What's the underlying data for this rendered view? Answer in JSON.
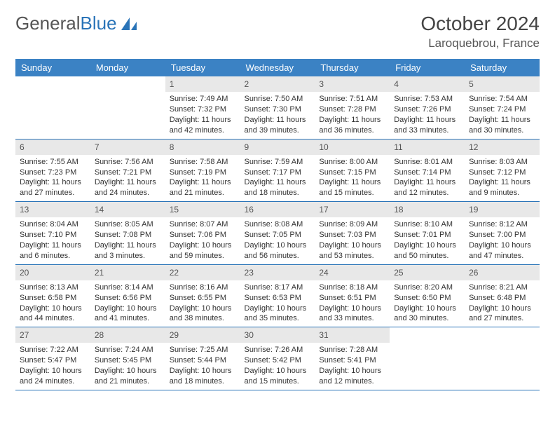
{
  "logo": {
    "text1": "General",
    "text2": "Blue"
  },
  "title": "October 2024",
  "location": "Laroquebrou, France",
  "colors": {
    "header_bg": "#3b82c4",
    "border": "#2a74b8",
    "daynum_bg": "#e8e8e8"
  },
  "weekdays": [
    "Sunday",
    "Monday",
    "Tuesday",
    "Wednesday",
    "Thursday",
    "Friday",
    "Saturday"
  ],
  "grid": [
    [
      null,
      null,
      {
        "n": "1",
        "sr": "Sunrise: 7:49 AM",
        "ss": "Sunset: 7:32 PM",
        "dl": "Daylight: 11 hours and 42 minutes."
      },
      {
        "n": "2",
        "sr": "Sunrise: 7:50 AM",
        "ss": "Sunset: 7:30 PM",
        "dl": "Daylight: 11 hours and 39 minutes."
      },
      {
        "n": "3",
        "sr": "Sunrise: 7:51 AM",
        "ss": "Sunset: 7:28 PM",
        "dl": "Daylight: 11 hours and 36 minutes."
      },
      {
        "n": "4",
        "sr": "Sunrise: 7:53 AM",
        "ss": "Sunset: 7:26 PM",
        "dl": "Daylight: 11 hours and 33 minutes."
      },
      {
        "n": "5",
        "sr": "Sunrise: 7:54 AM",
        "ss": "Sunset: 7:24 PM",
        "dl": "Daylight: 11 hours and 30 minutes."
      }
    ],
    [
      {
        "n": "6",
        "sr": "Sunrise: 7:55 AM",
        "ss": "Sunset: 7:23 PM",
        "dl": "Daylight: 11 hours and 27 minutes."
      },
      {
        "n": "7",
        "sr": "Sunrise: 7:56 AM",
        "ss": "Sunset: 7:21 PM",
        "dl": "Daylight: 11 hours and 24 minutes."
      },
      {
        "n": "8",
        "sr": "Sunrise: 7:58 AM",
        "ss": "Sunset: 7:19 PM",
        "dl": "Daylight: 11 hours and 21 minutes."
      },
      {
        "n": "9",
        "sr": "Sunrise: 7:59 AM",
        "ss": "Sunset: 7:17 PM",
        "dl": "Daylight: 11 hours and 18 minutes."
      },
      {
        "n": "10",
        "sr": "Sunrise: 8:00 AM",
        "ss": "Sunset: 7:15 PM",
        "dl": "Daylight: 11 hours and 15 minutes."
      },
      {
        "n": "11",
        "sr": "Sunrise: 8:01 AM",
        "ss": "Sunset: 7:14 PM",
        "dl": "Daylight: 11 hours and 12 minutes."
      },
      {
        "n": "12",
        "sr": "Sunrise: 8:03 AM",
        "ss": "Sunset: 7:12 PM",
        "dl": "Daylight: 11 hours and 9 minutes."
      }
    ],
    [
      {
        "n": "13",
        "sr": "Sunrise: 8:04 AM",
        "ss": "Sunset: 7:10 PM",
        "dl": "Daylight: 11 hours and 6 minutes."
      },
      {
        "n": "14",
        "sr": "Sunrise: 8:05 AM",
        "ss": "Sunset: 7:08 PM",
        "dl": "Daylight: 11 hours and 3 minutes."
      },
      {
        "n": "15",
        "sr": "Sunrise: 8:07 AM",
        "ss": "Sunset: 7:06 PM",
        "dl": "Daylight: 10 hours and 59 minutes."
      },
      {
        "n": "16",
        "sr": "Sunrise: 8:08 AM",
        "ss": "Sunset: 7:05 PM",
        "dl": "Daylight: 10 hours and 56 minutes."
      },
      {
        "n": "17",
        "sr": "Sunrise: 8:09 AM",
        "ss": "Sunset: 7:03 PM",
        "dl": "Daylight: 10 hours and 53 minutes."
      },
      {
        "n": "18",
        "sr": "Sunrise: 8:10 AM",
        "ss": "Sunset: 7:01 PM",
        "dl": "Daylight: 10 hours and 50 minutes."
      },
      {
        "n": "19",
        "sr": "Sunrise: 8:12 AM",
        "ss": "Sunset: 7:00 PM",
        "dl": "Daylight: 10 hours and 47 minutes."
      }
    ],
    [
      {
        "n": "20",
        "sr": "Sunrise: 8:13 AM",
        "ss": "Sunset: 6:58 PM",
        "dl": "Daylight: 10 hours and 44 minutes."
      },
      {
        "n": "21",
        "sr": "Sunrise: 8:14 AM",
        "ss": "Sunset: 6:56 PM",
        "dl": "Daylight: 10 hours and 41 minutes."
      },
      {
        "n": "22",
        "sr": "Sunrise: 8:16 AM",
        "ss": "Sunset: 6:55 PM",
        "dl": "Daylight: 10 hours and 38 minutes."
      },
      {
        "n": "23",
        "sr": "Sunrise: 8:17 AM",
        "ss": "Sunset: 6:53 PM",
        "dl": "Daylight: 10 hours and 35 minutes."
      },
      {
        "n": "24",
        "sr": "Sunrise: 8:18 AM",
        "ss": "Sunset: 6:51 PM",
        "dl": "Daylight: 10 hours and 33 minutes."
      },
      {
        "n": "25",
        "sr": "Sunrise: 8:20 AM",
        "ss": "Sunset: 6:50 PM",
        "dl": "Daylight: 10 hours and 30 minutes."
      },
      {
        "n": "26",
        "sr": "Sunrise: 8:21 AM",
        "ss": "Sunset: 6:48 PM",
        "dl": "Daylight: 10 hours and 27 minutes."
      }
    ],
    [
      {
        "n": "27",
        "sr": "Sunrise: 7:22 AM",
        "ss": "Sunset: 5:47 PM",
        "dl": "Daylight: 10 hours and 24 minutes."
      },
      {
        "n": "28",
        "sr": "Sunrise: 7:24 AM",
        "ss": "Sunset: 5:45 PM",
        "dl": "Daylight: 10 hours and 21 minutes."
      },
      {
        "n": "29",
        "sr": "Sunrise: 7:25 AM",
        "ss": "Sunset: 5:44 PM",
        "dl": "Daylight: 10 hours and 18 minutes."
      },
      {
        "n": "30",
        "sr": "Sunrise: 7:26 AM",
        "ss": "Sunset: 5:42 PM",
        "dl": "Daylight: 10 hours and 15 minutes."
      },
      {
        "n": "31",
        "sr": "Sunrise: 7:28 AM",
        "ss": "Sunset: 5:41 PM",
        "dl": "Daylight: 10 hours and 12 minutes."
      },
      null,
      null
    ]
  ]
}
